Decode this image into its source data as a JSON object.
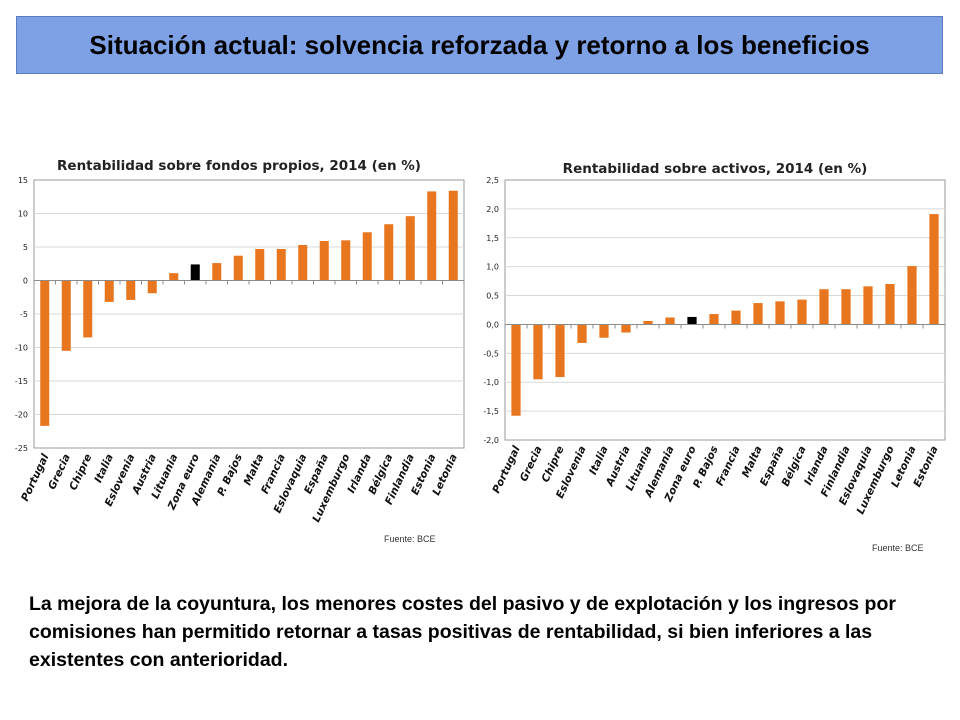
{
  "slide": {
    "title": "Situación actual: solvencia reforzada y retorno a los beneficios",
    "body_text": "La mejora de la coyuntura, los menores costes del pasivo y de explotación y los ingresos por comisiones han permitido retornar a tasas positivas de rentabilidad, si bien inferiores a las existentes con anterioridad."
  },
  "colors": {
    "title_bg": "#7ea1e6",
    "bar": "#e8761e",
    "highlight_bar": "#000000",
    "grid": "#d9d9d9"
  },
  "chart_data": [
    {
      "type": "bar",
      "title": "Rentabilidad sobre fondos propios, 2014 (en %)",
      "source": "Fuente: BCE",
      "categories": [
        "Portugal",
        "Grecia",
        "Chipre",
        "Italia",
        "Eslovenia",
        "Austria",
        "Lituania",
        "Zona euro",
        "Alemania",
        "P. Bajos",
        "Malta",
        "Francia",
        "Eslovaquia",
        "España",
        "Luxemburgo",
        "Irlanda",
        "Bélgica",
        "Finlandia",
        "Estonia",
        "Letonia"
      ],
      "values": [
        -21.7,
        -10.5,
        -8.5,
        -3.2,
        -2.9,
        -1.9,
        1.1,
        2.4,
        2.6,
        3.7,
        4.7,
        4.7,
        5.3,
        5.9,
        6.0,
        7.2,
        8.4,
        9.6,
        13.3,
        13.4
      ],
      "highlight": "Zona euro",
      "ylim": [
        -25,
        15
      ],
      "yticks": [
        -25,
        -20,
        -15,
        -10,
        -5,
        0,
        5,
        10,
        15
      ],
      "ytick_labels": [
        "-25",
        "-20",
        "-15",
        "-10",
        "-5",
        "0",
        "5",
        "10",
        "15"
      ],
      "grid": true
    },
    {
      "type": "bar",
      "title": "Rentabilidad sobre activos, 2014 (en %)",
      "source": "Fuente: BCE",
      "categories": [
        "Portugal",
        "Grecia",
        "Chipre",
        "Eslovenia",
        "Italia",
        "Austria",
        "Lituania",
        "Alemania",
        "Zona euro",
        "P. Bajos",
        "Francia",
        "Malta",
        "España",
        "Bélgica",
        "Irlanda",
        "Finlandia",
        "Eslovaquia",
        "Luxemburgo",
        "Letonia",
        "Estonia"
      ],
      "values": [
        -1.58,
        -0.95,
        -0.91,
        -0.32,
        -0.23,
        -0.14,
        0.06,
        0.12,
        0.13,
        0.18,
        0.24,
        0.37,
        0.4,
        0.43,
        0.61,
        0.61,
        0.66,
        0.7,
        1.01,
        1.91
      ],
      "highlight": "Zona euro",
      "ylim": [
        -2.0,
        2.5
      ],
      "yticks": [
        -2.0,
        -1.5,
        -1.0,
        -0.5,
        0.0,
        0.5,
        1.0,
        1.5,
        2.0,
        2.5
      ],
      "ytick_labels": [
        "-2,0",
        "-1,5",
        "-1,0",
        "-0,5",
        "0,0",
        "0,5",
        "1,0",
        "1,5",
        "2,0",
        "2,5"
      ],
      "grid": true
    }
  ]
}
